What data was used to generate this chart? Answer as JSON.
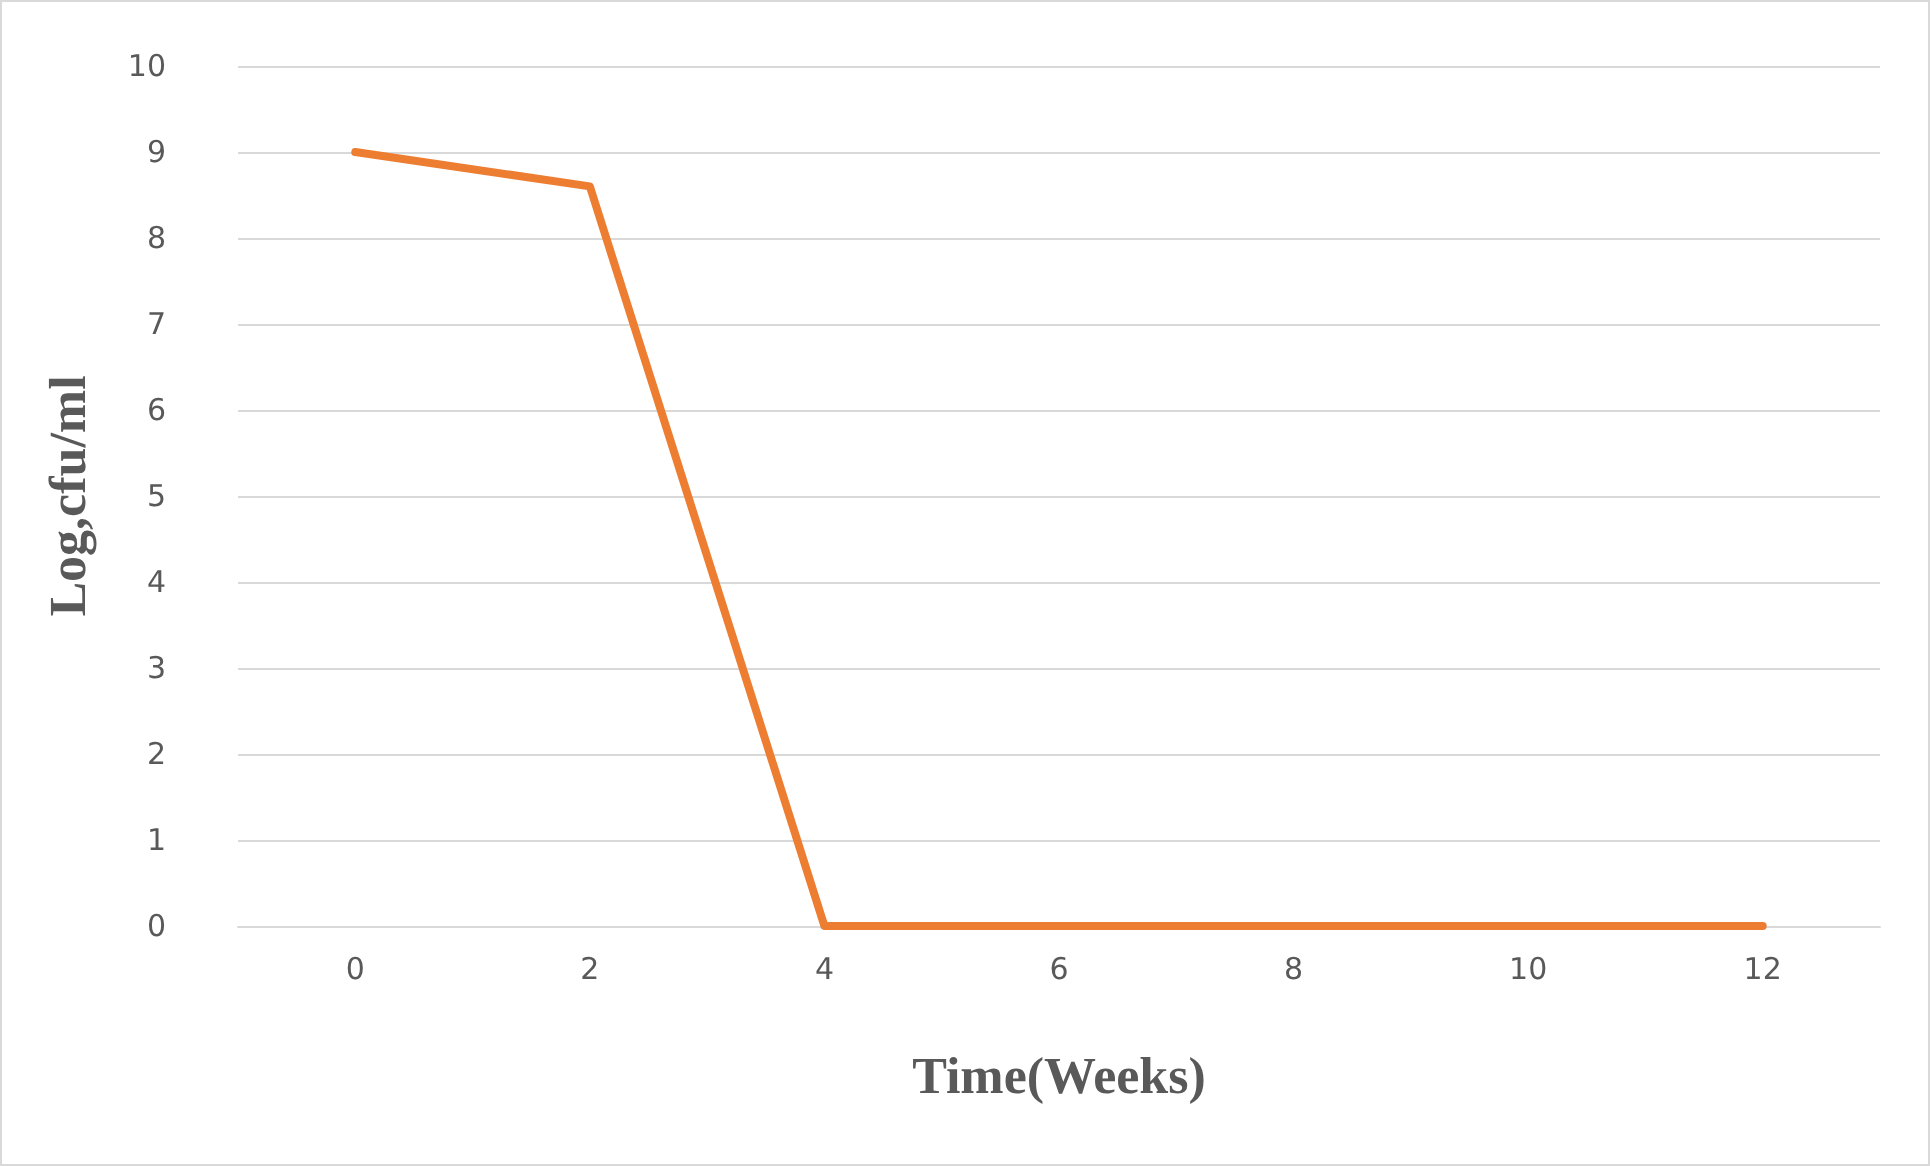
{
  "chart_data": {
    "type": "line",
    "xlabel": "Time(Weeks)",
    "ylabel": "Log,cfu/ml",
    "categories": [
      "0",
      "2",
      "4",
      "6",
      "8",
      "10",
      "12"
    ],
    "series": [
      {
        "color": "#ed7d31",
        "values": [
          9,
          8.6,
          0,
          0,
          0,
          0,
          0
        ]
      }
    ],
    "ylim": [
      0,
      10
    ],
    "yticks": [
      0,
      1,
      2,
      3,
      4,
      5,
      6,
      7,
      8,
      9,
      10
    ],
    "grid": "y",
    "marker": "none",
    "line_style": "solid"
  }
}
